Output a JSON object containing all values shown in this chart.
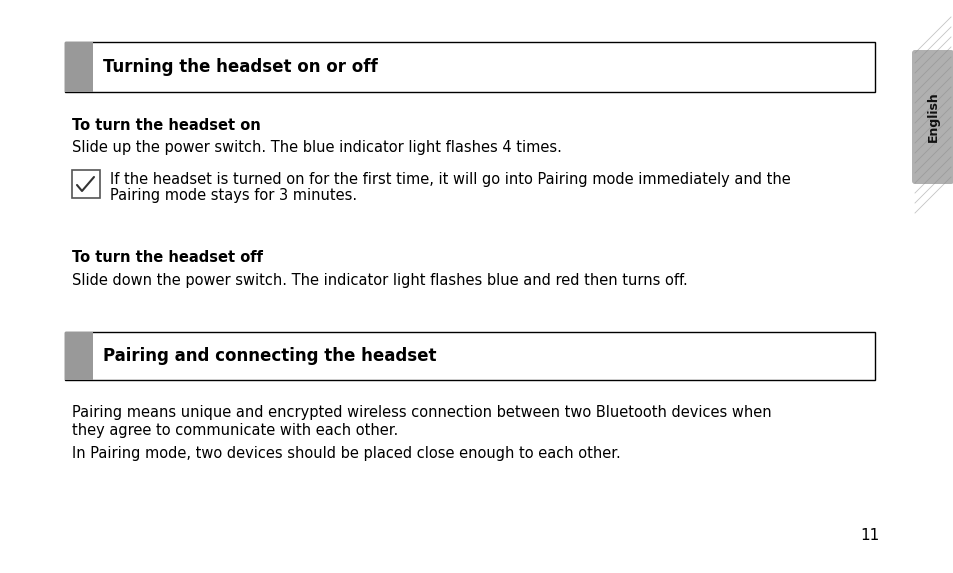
{
  "bg_color": "#ffffff",
  "page_number": "11",
  "section1_title": "Turning the headset on or off",
  "subsection1_heading": "To turn the headset on",
  "subsection1_body": "Slide up the power switch. The blue indicator light flashes 4 times.",
  "note_text_line1": "If the headset is turned on for the first time, it will go into Pairing mode immediately and the",
  "note_text_line2": "Pairing mode stays for 3 minutes.",
  "subsection2_heading": "To turn the headset off",
  "subsection2_body": "Slide down the power switch. The indicator light flashes blue and red then turns off.",
  "section2_title": "Pairing and connecting the headset",
  "para1_line1": "Pairing means unique and encrypted wireless connection between two Bluetooth devices when",
  "para1_line2": "they agree to communicate with each other.",
  "para2": "In Pairing mode, two devices should be placed close enough to each other.",
  "sidebar_label": "English",
  "gray_color": "#999999",
  "sidebar_bg_color": "#b0b0b0",
  "title_font_size": 12,
  "body_font_size": 10.5,
  "heading_font_size": 10.5,
  "page_num_font_size": 11
}
